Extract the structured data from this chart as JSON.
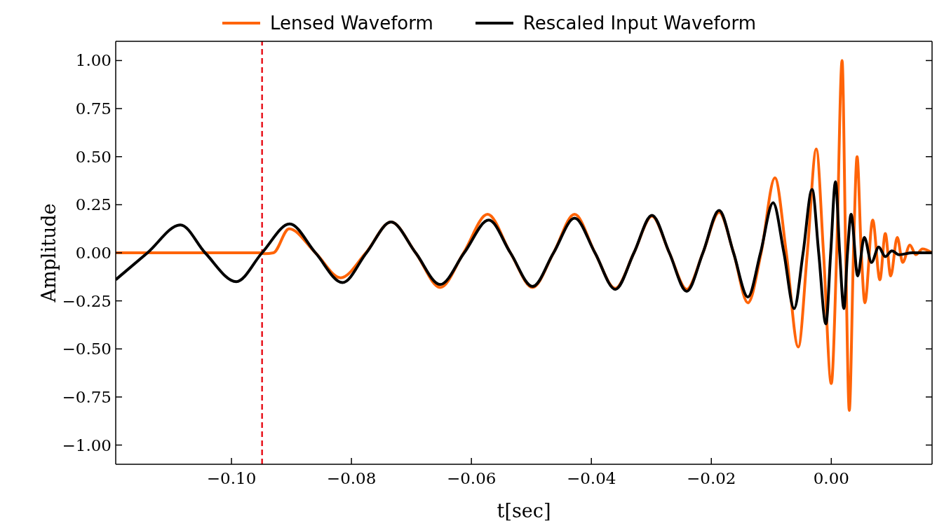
{
  "chart_data": {
    "type": "line",
    "xlabel": "t[sec]",
    "ylabel": "Amplitude",
    "legend": "top",
    "marker": "none",
    "xlim": [
      -0.1193,
      0.0168
    ],
    "ylim": [
      -1.1,
      1.1
    ],
    "xticks": [
      {
        "value": -0.1,
        "label": "−0.10"
      },
      {
        "value": -0.08,
        "label": "−0.08"
      },
      {
        "value": -0.06,
        "label": "−0.06"
      },
      {
        "value": -0.04,
        "label": "−0.04"
      },
      {
        "value": -0.02,
        "label": "−0.02"
      },
      {
        "value": 0,
        "label": "0.00"
      }
    ],
    "yticks": [
      {
        "value": 1,
        "label": "1.00"
      },
      {
        "value": 0.75,
        "label": "0.75"
      },
      {
        "value": 0.5,
        "label": "0.50"
      },
      {
        "value": 0.25,
        "label": "0.25"
      },
      {
        "value": 0,
        "label": "0.00"
      },
      {
        "value": -0.25,
        "label": "−0.25"
      },
      {
        "value": -0.5,
        "label": "−0.50"
      },
      {
        "value": -0.75,
        "label": "−0.75"
      },
      {
        "value": -1,
        "label": "−1.00"
      }
    ],
    "series": [
      {
        "name": "Lensed Waveform",
        "color": "#ff6408",
        "x": [
          -0.1193,
          -0.0949,
          -0.0945,
          -0.093,
          -0.0904,
          -0.086,
          -0.0818,
          -0.0776,
          -0.0734,
          -0.0693,
          -0.0652,
          -0.0613,
          -0.0573,
          -0.0535,
          -0.0498,
          -0.0463,
          -0.0428,
          -0.0394,
          -0.036,
          -0.0329,
          -0.0299,
          -0.027,
          -0.0241,
          -0.0214,
          -0.0187,
          -0.0163,
          -0.0139,
          -0.0117,
          -0.0094,
          -0.0075,
          -0.0055,
          -0.004,
          -0.0025,
          -0.0013,
          0.0,
          0.0009,
          0.0018,
          0.0024,
          0.003,
          0.0037,
          0.0043,
          0.005,
          0.0056,
          0.0069,
          0.0081,
          0.009,
          0.0099,
          0.011,
          0.0119,
          0.0131,
          0.0141,
          0.0152,
          0.0168
        ],
        "values": [
          0,
          0,
          -0.005,
          0,
          0.125,
          0,
          -0.13,
          0,
          0.16,
          0,
          -0.18,
          0,
          0.2,
          0,
          -0.18,
          0,
          0.2,
          0,
          -0.185,
          0,
          0.19,
          0,
          -0.19,
          0,
          0.21,
          0,
          -0.26,
          0,
          0.39,
          0,
          -0.49,
          0,
          0.54,
          0,
          -0.68,
          0,
          1.0,
          0,
          -0.82,
          0,
          0.5,
          0,
          -0.26,
          0.17,
          -0.14,
          0.1,
          -0.12,
          0.08,
          -0.05,
          0.04,
          -0.01,
          0.02,
          0
        ]
      },
      {
        "name": "Rescaled Input Waveform",
        "color": "#000000",
        "x": [
          -0.1193,
          -0.114,
          -0.1085,
          -0.1044,
          -0.0992,
          -0.0949,
          -0.0903,
          -0.086,
          -0.0815,
          -0.0775,
          -0.0734,
          -0.0693,
          -0.0652,
          -0.0612,
          -0.0571,
          -0.0535,
          -0.0498,
          -0.0463,
          -0.0428,
          -0.0394,
          -0.036,
          -0.0329,
          -0.0299,
          -0.027,
          -0.0241,
          -0.0214,
          -0.0187,
          -0.0163,
          -0.0139,
          -0.0118,
          -0.0097,
          -0.0079,
          -0.0062,
          -0.0047,
          -0.0032,
          -0.0021,
          -0.0009,
          -0.0001,
          0.0007,
          0.0014,
          0.0021,
          0.0027,
          0.0033,
          0.0044,
          0.0055,
          0.0067,
          0.0079,
          0.009,
          0.0101,
          0.0113,
          0.0135,
          0.0168
        ],
        "values": [
          -0.14,
          0,
          0.145,
          0,
          -0.15,
          0,
          0.15,
          0,
          -0.155,
          0,
          0.16,
          0,
          -0.165,
          0,
          0.17,
          0,
          -0.175,
          0,
          0.18,
          0,
          -0.19,
          0,
          0.195,
          0,
          -0.2,
          0,
          0.22,
          0,
          -0.23,
          0,
          0.26,
          0,
          -0.29,
          0,
          0.33,
          0,
          -0.37,
          0,
          0.37,
          0,
          -0.29,
          0,
          0.2,
          -0.12,
          0.08,
          -0.05,
          0.03,
          -0.02,
          0.01,
          -0.01,
          0.0,
          0
        ]
      }
    ],
    "ref_lines": [
      {
        "axis": "x",
        "value": -0.0949,
        "color": "#e8141c",
        "line_style": "dashed"
      }
    ]
  }
}
